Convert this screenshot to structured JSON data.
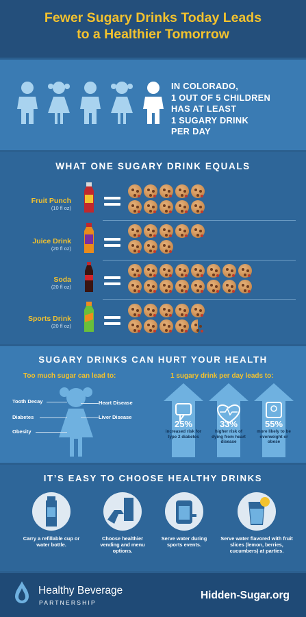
{
  "header": {
    "title_line1": "Fewer Sugary Drinks Today Leads",
    "title_line2": "to a Healthier Tomorrow"
  },
  "children_stat": {
    "line1": "IN COLORADO,",
    "line2": "1 OUT OF 5 CHILDREN",
    "line3": "HAS AT LEAST",
    "line4": "1 SUGARY DRINK",
    "line5": "PER DAY",
    "icon": "child-figure-icon",
    "highlight_color": "#ffffff",
    "base_color": "#a9d3ef"
  },
  "drink_equivalents": {
    "heading": "WHAT ONE SUGARY DRINK EQUALS",
    "items": [
      {
        "name": "Fruit Punch",
        "size": "(10 fl oz)",
        "cookies": 10,
        "bottle_color": "#c0282d"
      },
      {
        "name": "Juice Drink",
        "size": "(20 fl oz)",
        "cookies": 8,
        "bottle_color": "#e98b1c"
      },
      {
        "name": "Soda",
        "size": "(20 fl oz)",
        "cookies": 16,
        "bottle_color": "#8b1a1a"
      },
      {
        "name": "Sports Drink",
        "size": "(20 fl oz)",
        "cookies": 9.5,
        "bottle_color": "#6abf3a"
      }
    ]
  },
  "health": {
    "heading": "SUGARY DRINKS CAN HURT YOUR HEALTH",
    "left_sub": "Too much sugar can lead to:",
    "right_sub": "1 sugary drink per day leads to:",
    "conditions": [
      "Tooth Decay",
      "Diabetes",
      "Obesity",
      "Heart Disease",
      "Liver Disease"
    ],
    "stats": [
      {
        "pct": "25%",
        "desc": "increased risk for type 2 diabetes",
        "icon": "thumbs-down-icon"
      },
      {
        "pct": "33%",
        "desc": "higher risk of dying from heart disease",
        "icon": "heart-rate-icon"
      },
      {
        "pct": "55%",
        "desc": "more likely to be overweight or obese",
        "icon": "scale-icon"
      }
    ]
  },
  "tips": {
    "heading": "IT’S EASY TO CHOOSE HEALTHY DRINKS",
    "items": [
      {
        "caption": "Carry a refillable cup or water bottle.",
        "icon": "water-bottle-icon"
      },
      {
        "caption": "Choose healthier vending and menu options.",
        "icon": "vending-hand-icon"
      },
      {
        "caption": "Serve water during sports events.",
        "icon": "water-cooler-icon"
      },
      {
        "caption": "Serve water flavored with fruit slices (lemon, berries, cucumbers) at parties.",
        "icon": "lemon-water-glass-icon"
      }
    ]
  },
  "footer": {
    "brand": "Healthy Beverage",
    "brand_sub": "PARTNERSHIP",
    "site": "Hidden-Sugar.org"
  }
}
